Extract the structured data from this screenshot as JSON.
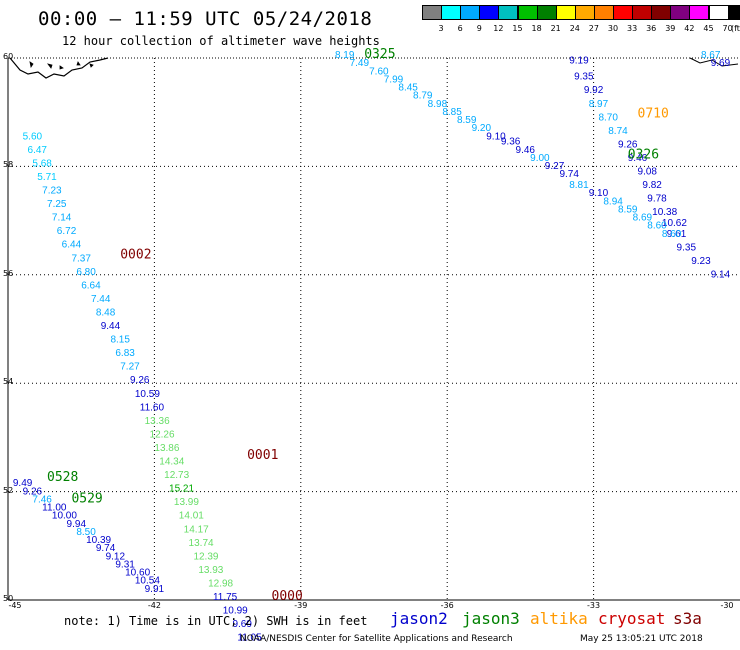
{
  "title": "00:00 – 11:59 UTC 05/24/2018",
  "subtitle": "12 hour collection of altimeter wave heights",
  "colorbar": {
    "colors": [
      "#808080",
      "#00ffff",
      "#00aaff",
      "#0000ff",
      "#00c0c0",
      "#00c000",
      "#008000",
      "#ffff00",
      "#ffaa00",
      "#ff7f00",
      "#ff0000",
      "#c00000",
      "#800000",
      "#800080",
      "#ff00ff",
      "#ffffff",
      "#000000"
    ],
    "labels": [
      "3",
      "6",
      "9",
      "12",
      "15",
      "18",
      "21",
      "24",
      "27",
      "30",
      "33",
      "36",
      "39",
      "42",
      "45",
      "70"
    ],
    "unit": "(ft)"
  },
  "axes": {
    "y_ticks": [
      "60",
      "58",
      "56",
      "54",
      "52",
      "50"
    ],
    "x_ticks": [
      "-45",
      "-42",
      "-39",
      "-36",
      "-33",
      "-30"
    ]
  },
  "series_colors": {
    "jason2": "#0000cc",
    "jason3": "#008000",
    "altika": "#ff9900",
    "cryosat": "#cc0000",
    "s3a": "#800000"
  },
  "chart_data": {
    "type": "scatter",
    "x_range": [
      -45,
      -30
    ],
    "y_range": [
      50,
      60
    ],
    "times": [
      {
        "text": "0325",
        "lon": -37.7,
        "lat": 60.0,
        "color": "#008000"
      },
      {
        "text": "0710",
        "lon": -32.1,
        "lat": 58.9,
        "color": "#ff9900"
      },
      {
        "text": "0326",
        "lon": -32.3,
        "lat": 58.15,
        "color": "#008000"
      },
      {
        "text": "0002",
        "lon": -42.7,
        "lat": 56.3,
        "color": "#800000"
      },
      {
        "text": "0001",
        "lon": -40.1,
        "lat": 52.6,
        "color": "#800000"
      },
      {
        "text": "0528",
        "lon": -44.2,
        "lat": 52.2,
        "color": "#008000"
      },
      {
        "text": "0529",
        "lon": -43.7,
        "lat": 51.8,
        "color": "#008000"
      },
      {
        "text": "0000",
        "lon": -39.6,
        "lat": 50.0,
        "color": "#800000"
      }
    ],
    "points": [
      {
        "v": "8.19",
        "lon": -38.3,
        "lat": 60.0,
        "c": "#00aaff"
      },
      {
        "v": "7.49",
        "lon": -38.0,
        "lat": 59.85,
        "c": "#00aaff"
      },
      {
        "v": "7.60",
        "lon": -37.6,
        "lat": 59.7,
        "c": "#00aaff"
      },
      {
        "v": "7.99",
        "lon": -37.3,
        "lat": 59.55,
        "c": "#00aaff"
      },
      {
        "v": "8.45",
        "lon": -37.0,
        "lat": 59.4,
        "c": "#00aaff"
      },
      {
        "v": "8.79",
        "lon": -36.7,
        "lat": 59.25,
        "c": "#00aaff"
      },
      {
        "v": "8.98",
        "lon": -36.4,
        "lat": 59.1,
        "c": "#00aaff"
      },
      {
        "v": "8.85",
        "lon": -36.1,
        "lat": 58.95,
        "c": "#00aaff"
      },
      {
        "v": "8.59",
        "lon": -35.8,
        "lat": 58.8,
        "c": "#00aaff"
      },
      {
        "v": "9.20",
        "lon": -35.5,
        "lat": 58.65,
        "c": "#00aaff"
      },
      {
        "v": "9.10",
        "lon": -35.2,
        "lat": 58.5,
        "c": "#0000cc"
      },
      {
        "v": "9.36",
        "lon": -34.9,
        "lat": 58.4,
        "c": "#0000cc"
      },
      {
        "v": "9.46",
        "lon": -34.6,
        "lat": 58.25,
        "c": "#0000cc"
      },
      {
        "v": "9.00",
        "lon": -34.3,
        "lat": 58.1,
        "c": "#00aaff"
      },
      {
        "v": "9.27",
        "lon": -34.0,
        "lat": 57.95,
        "c": "#0000cc"
      },
      {
        "v": "9.74",
        "lon": -33.7,
        "lat": 57.8,
        "c": "#0000cc"
      },
      {
        "v": "9.19",
        "lon": -33.5,
        "lat": 59.9,
        "c": "#0000cc"
      },
      {
        "v": "9.35",
        "lon": -33.4,
        "lat": 59.6,
        "c": "#0000cc"
      },
      {
        "v": "9.92",
        "lon": -33.2,
        "lat": 59.35,
        "c": "#0000cc"
      },
      {
        "v": "8.97",
        "lon": -33.1,
        "lat": 59.1,
        "c": "#00aaff"
      },
      {
        "v": "8.70",
        "lon": -32.9,
        "lat": 58.85,
        "c": "#00aaff"
      },
      {
        "v": "8.74",
        "lon": -32.7,
        "lat": 58.6,
        "c": "#00aaff"
      },
      {
        "v": "9.26",
        "lon": -32.5,
        "lat": 58.35,
        "c": "#0000cc"
      },
      {
        "v": "9.46",
        "lon": -32.3,
        "lat": 58.1,
        "c": "#0000cc"
      },
      {
        "v": "9.08",
        "lon": -32.1,
        "lat": 57.85,
        "c": "#0000cc"
      },
      {
        "v": "9.82",
        "lon": -32.0,
        "lat": 57.6,
        "c": "#0000cc"
      },
      {
        "v": "9.78",
        "lon": -31.9,
        "lat": 57.35,
        "c": "#0000cc"
      },
      {
        "v": "10.38",
        "lon": -31.8,
        "lat": 57.1,
        "c": "#0000cc"
      },
      {
        "v": "10.62",
        "lon": -31.6,
        "lat": 56.9,
        "c": "#0000cc"
      },
      {
        "v": "9.61",
        "lon": -31.5,
        "lat": 56.7,
        "c": "#0000cc"
      },
      {
        "v": "9.35",
        "lon": -31.3,
        "lat": 56.45,
        "c": "#0000cc"
      },
      {
        "v": "9.23",
        "lon": -31.0,
        "lat": 56.2,
        "c": "#0000cc"
      },
      {
        "v": "8.81",
        "lon": -33.5,
        "lat": 57.6,
        "c": "#00aaff"
      },
      {
        "v": "9.10",
        "lon": -33.1,
        "lat": 57.45,
        "c": "#0000cc"
      },
      {
        "v": "8.94",
        "lon": -32.8,
        "lat": 57.3,
        "c": "#00aaff"
      },
      {
        "v": "8.59",
        "lon": -32.5,
        "lat": 57.15,
        "c": "#00aaff"
      },
      {
        "v": "8.69",
        "lon": -32.2,
        "lat": 57.0,
        "c": "#00aaff"
      },
      {
        "v": "8.60",
        "lon": -31.9,
        "lat": 56.85,
        "c": "#00aaff"
      },
      {
        "v": "8.60",
        "lon": -31.6,
        "lat": 56.7,
        "c": "#00aaff"
      },
      {
        "v": "9.14",
        "lon": -30.6,
        "lat": 55.95,
        "c": "#0000cc"
      },
      {
        "v": "8.67",
        "lon": -30.8,
        "lat": 60.0,
        "c": "#00aaff"
      },
      {
        "v": "9.69",
        "lon": -30.6,
        "lat": 59.85,
        "c": "#0000cc"
      },
      {
        "v": "5.60",
        "lon": -44.7,
        "lat": 58.5,
        "c": "#00ccff"
      },
      {
        "v": "6.47",
        "lon": -44.6,
        "lat": 58.25,
        "c": "#00ccff"
      },
      {
        "v": "5.68",
        "lon": -44.5,
        "lat": 58.0,
        "c": "#00ccff"
      },
      {
        "v": "5.71",
        "lon": -44.4,
        "lat": 57.75,
        "c": "#00ccff"
      },
      {
        "v": "7.23",
        "lon": -44.3,
        "lat": 57.5,
        "c": "#00aaff"
      },
      {
        "v": "7.25",
        "lon": -44.2,
        "lat": 57.25,
        "c": "#00aaff"
      },
      {
        "v": "7.14",
        "lon": -44.1,
        "lat": 57.0,
        "c": "#00aaff"
      },
      {
        "v": "6.72",
        "lon": -44.0,
        "lat": 56.75,
        "c": "#00aaff"
      },
      {
        "v": "6.44",
        "lon": -43.9,
        "lat": 56.5,
        "c": "#00aaff"
      },
      {
        "v": "7.37",
        "lon": -43.7,
        "lat": 56.25,
        "c": "#00aaff"
      },
      {
        "v": "6.80",
        "lon": -43.6,
        "lat": 56.0,
        "c": "#00aaff"
      },
      {
        "v": "6.64",
        "lon": -43.5,
        "lat": 55.75,
        "c": "#00aaff"
      },
      {
        "v": "7.44",
        "lon": -43.3,
        "lat": 55.5,
        "c": "#00aaff"
      },
      {
        "v": "8.48",
        "lon": -43.2,
        "lat": 55.25,
        "c": "#00aaff"
      },
      {
        "v": "9.44",
        "lon": -43.1,
        "lat": 55.0,
        "c": "#0000cc"
      },
      {
        "v": "8.15",
        "lon": -42.9,
        "lat": 54.75,
        "c": "#00aaff"
      },
      {
        "v": "6.83",
        "lon": -42.8,
        "lat": 54.5,
        "c": "#00aaff"
      },
      {
        "v": "7.27",
        "lon": -42.7,
        "lat": 54.25,
        "c": "#00aaff"
      },
      {
        "v": "9.26",
        "lon": -42.5,
        "lat": 54.0,
        "c": "#0000cc"
      },
      {
        "v": "10.59",
        "lon": -42.4,
        "lat": 53.75,
        "c": "#0000cc"
      },
      {
        "v": "11.60",
        "lon": -42.3,
        "lat": 53.5,
        "c": "#0000cc"
      },
      {
        "v": "13.36",
        "lon": -42.2,
        "lat": 53.25,
        "c": "#66dd66"
      },
      {
        "v": "12.26",
        "lon": -42.1,
        "lat": 53.0,
        "c": "#66dd66"
      },
      {
        "v": "13.86",
        "lon": -42.0,
        "lat": 52.75,
        "c": "#66dd66"
      },
      {
        "v": "14.34",
        "lon": -41.9,
        "lat": 52.5,
        "c": "#66dd66"
      },
      {
        "v": "12.73",
        "lon": -41.8,
        "lat": 52.25,
        "c": "#66dd66"
      },
      {
        "v": "15.21",
        "lon": -41.7,
        "lat": 52.0,
        "c": "#00aa00"
      },
      {
        "v": "13.99",
        "lon": -41.6,
        "lat": 51.75,
        "c": "#66dd66"
      },
      {
        "v": "14.01",
        "lon": -41.5,
        "lat": 51.5,
        "c": "#66dd66"
      },
      {
        "v": "14.17",
        "lon": -41.4,
        "lat": 51.25,
        "c": "#66dd66"
      },
      {
        "v": "13.74",
        "lon": -41.3,
        "lat": 51.0,
        "c": "#66dd66"
      },
      {
        "v": "12.39",
        "lon": -41.2,
        "lat": 50.75,
        "c": "#66dd66"
      },
      {
        "v": "13.93",
        "lon": -41.1,
        "lat": 50.5,
        "c": "#66dd66"
      },
      {
        "v": "12.98",
        "lon": -40.9,
        "lat": 50.25,
        "c": "#66dd66"
      },
      {
        "v": "11.75",
        "lon": -40.8,
        "lat": 50.0,
        "c": "#0000cc"
      },
      {
        "v": "10.99",
        "lon": -40.6,
        "lat": 49.75,
        "c": "#0000cc"
      },
      {
        "v": "9.69",
        "lon": -40.4,
        "lat": 49.5,
        "c": "#0000cc"
      },
      {
        "v": "11.05",
        "lon": -40.3,
        "lat": 49.25,
        "c": "#0000cc"
      },
      {
        "v": "9.49",
        "lon": -44.9,
        "lat": 52.1,
        "c": "#0000cc"
      },
      {
        "v": "9.26",
        "lon": -44.7,
        "lat": 51.95,
        "c": "#0000cc"
      },
      {
        "v": "7.46",
        "lon": -44.5,
        "lat": 51.8,
        "c": "#00aaff"
      },
      {
        "v": "11.00",
        "lon": -44.3,
        "lat": 51.65,
        "c": "#0000cc"
      },
      {
        "v": "10.00",
        "lon": -44.1,
        "lat": 51.5,
        "c": "#0000cc"
      },
      {
        "v": "9.94",
        "lon": -43.8,
        "lat": 51.35,
        "c": "#0000cc"
      },
      {
        "v": "8.50",
        "lon": -43.6,
        "lat": 51.2,
        "c": "#00aaff"
      },
      {
        "v": "10.39",
        "lon": -43.4,
        "lat": 51.05,
        "c": "#0000cc"
      },
      {
        "v": "9.74",
        "lon": -43.2,
        "lat": 50.9,
        "c": "#0000cc"
      },
      {
        "v": "9.12",
        "lon": -43.0,
        "lat": 50.75,
        "c": "#0000cc"
      },
      {
        "v": "9.31",
        "lon": -42.8,
        "lat": 50.6,
        "c": "#0000cc"
      },
      {
        "v": "10.60",
        "lon": -42.6,
        "lat": 50.45,
        "c": "#0000cc"
      },
      {
        "v": "10.54",
        "lon": -42.4,
        "lat": 50.3,
        "c": "#0000cc"
      },
      {
        "v": "9.91",
        "lon": -42.2,
        "lat": 50.15,
        "c": "#0000cc"
      }
    ]
  },
  "note": "note: 1) Time is in UTC; 2) SWH is in feet",
  "legend": [
    {
      "key": "jason2",
      "label": "jason2",
      "color": "#0000cc"
    },
    {
      "key": "jason3",
      "label": "jason3",
      "color": "#008000"
    },
    {
      "key": "altika",
      "label": "altika",
      "color": "#ff9900"
    },
    {
      "key": "cryosat",
      "label": "cryosat",
      "color": "#cc0000"
    },
    {
      "key": "s3a",
      "label": "s3a",
      "color": "#800000"
    }
  ],
  "footer": "NOAA/NESDIS Center for Satellite Applications and Research",
  "footer_date": "May 25 13:05:21 UTC 2018"
}
